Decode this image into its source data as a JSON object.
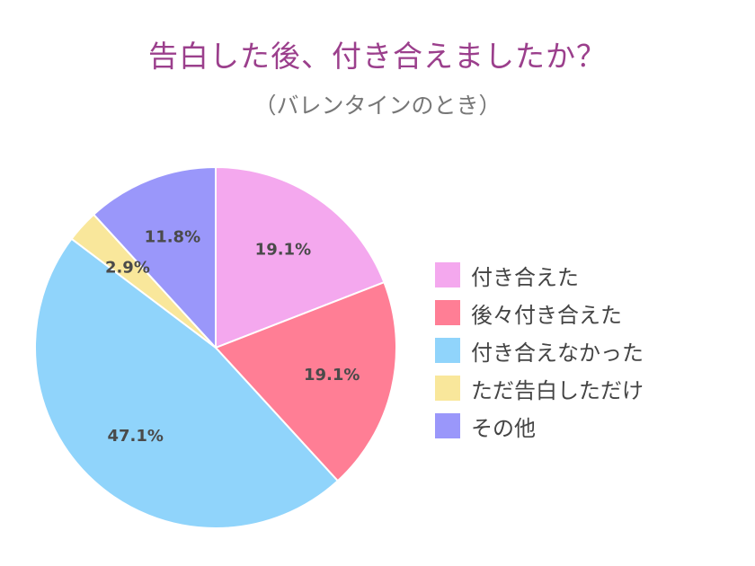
{
  "chart_data": {
    "type": "pie",
    "title": "告白した後、付き合えましたか？",
    "subtitle": "（バレンタインのとき）",
    "legend_position": "right",
    "start_angle_deg": 0,
    "direction": "clockwise",
    "slices": [
      {
        "label": "付き合えた",
        "value": 19.1,
        "display": "19.1%",
        "color": "#f4a8ee"
      },
      {
        "label": "後々付き合えた",
        "value": 19.1,
        "display": "19.1%",
        "color": "#ff7e95"
      },
      {
        "label": "付き合えなかった",
        "value": 47.1,
        "display": "47.1%",
        "color": "#90d4fb"
      },
      {
        "label": "ただ告白しただけ",
        "value": 2.9,
        "display": "2.9%",
        "color": "#f9e79b"
      },
      {
        "label": "その他",
        "value": 11.8,
        "display": "11.8%",
        "color": "#9a97fa"
      }
    ]
  }
}
